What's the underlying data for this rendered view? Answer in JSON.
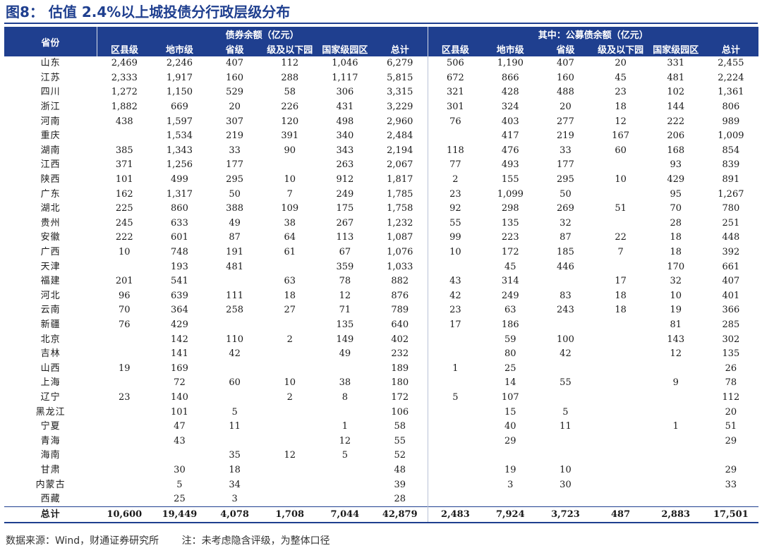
{
  "title": "图8：  估值 2.4%以上城投债分行政层级分布",
  "header": {
    "province": "省份",
    "group1": "债券余额（亿元）",
    "group2": "其中：公募债余额（亿元）",
    "sub": [
      "区县级",
      "地市级",
      "省级",
      "级及以下园",
      "国家级园区",
      "总计",
      "区县级",
      "地市级",
      "省级",
      "级及以下园",
      "国家级园区",
      "总计"
    ]
  },
  "rows": [
    {
      "province": "山东",
      "v": [
        "2,469",
        "2,246",
        "407",
        "112",
        "1,046",
        "6,279",
        "506",
        "1,190",
        "407",
        "20",
        "331",
        "2,455"
      ]
    },
    {
      "province": "江苏",
      "v": [
        "2,333",
        "1,917",
        "160",
        "288",
        "1,117",
        "5,815",
        "672",
        "866",
        "160",
        "45",
        "481",
        "2,224"
      ]
    },
    {
      "province": "四川",
      "v": [
        "1,272",
        "1,150",
        "529",
        "58",
        "306",
        "3,315",
        "321",
        "428",
        "488",
        "23",
        "102",
        "1,361"
      ]
    },
    {
      "province": "浙江",
      "v": [
        "1,882",
        "669",
        "20",
        "226",
        "431",
        "3,229",
        "301",
        "324",
        "20",
        "18",
        "144",
        "806"
      ]
    },
    {
      "province": "河南",
      "v": [
        "438",
        "1,597",
        "307",
        "120",
        "498",
        "2,960",
        "76",
        "403",
        "277",
        "12",
        "222",
        "989"
      ]
    },
    {
      "province": "重庆",
      "v": [
        "",
        "1,534",
        "219",
        "391",
        "340",
        "2,484",
        "",
        "417",
        "219",
        "167",
        "206",
        "1,009"
      ]
    },
    {
      "province": "湖南",
      "v": [
        "385",
        "1,343",
        "33",
        "90",
        "343",
        "2,194",
        "118",
        "476",
        "33",
        "60",
        "168",
        "854"
      ]
    },
    {
      "province": "江西",
      "v": [
        "371",
        "1,256",
        "177",
        "",
        "263",
        "2,067",
        "77",
        "493",
        "177",
        "",
        "93",
        "839"
      ]
    },
    {
      "province": "陕西",
      "v": [
        "101",
        "499",
        "295",
        "10",
        "912",
        "1,817",
        "2",
        "155",
        "295",
        "10",
        "429",
        "891"
      ]
    },
    {
      "province": "广东",
      "v": [
        "162",
        "1,317",
        "50",
        "7",
        "249",
        "1,785",
        "23",
        "1,099",
        "50",
        "",
        "95",
        "1,267"
      ]
    },
    {
      "province": "湖北",
      "v": [
        "225",
        "860",
        "388",
        "109",
        "175",
        "1,758",
        "92",
        "298",
        "269",
        "51",
        "70",
        "780"
      ]
    },
    {
      "province": "贵州",
      "v": [
        "245",
        "633",
        "49",
        "38",
        "267",
        "1,232",
        "55",
        "135",
        "32",
        "",
        "28",
        "251"
      ]
    },
    {
      "province": "安徽",
      "v": [
        "222",
        "601",
        "87",
        "64",
        "113",
        "1,087",
        "99",
        "223",
        "87",
        "22",
        "18",
        "448"
      ]
    },
    {
      "province": "广西",
      "v": [
        "10",
        "748",
        "191",
        "61",
        "67",
        "1,076",
        "10",
        "172",
        "185",
        "7",
        "18",
        "392"
      ]
    },
    {
      "province": "天津",
      "v": [
        "",
        "193",
        "481",
        "",
        "359",
        "1,033",
        "",
        "45",
        "446",
        "",
        "170",
        "661"
      ]
    },
    {
      "province": "福建",
      "v": [
        "201",
        "541",
        "",
        "63",
        "78",
        "882",
        "43",
        "314",
        "",
        "17",
        "32",
        "407"
      ]
    },
    {
      "province": "河北",
      "v": [
        "96",
        "639",
        "111",
        "18",
        "12",
        "876",
        "42",
        "249",
        "83",
        "18",
        "10",
        "401"
      ]
    },
    {
      "province": "云南",
      "v": [
        "70",
        "364",
        "258",
        "27",
        "71",
        "789",
        "23",
        "63",
        "243",
        "18",
        "19",
        "366"
      ]
    },
    {
      "province": "新疆",
      "v": [
        "76",
        "429",
        "",
        "",
        "135",
        "640",
        "17",
        "186",
        "",
        "",
        "81",
        "285"
      ]
    },
    {
      "province": "北京",
      "v": [
        "",
        "142",
        "110",
        "2",
        "149",
        "402",
        "",
        "59",
        "100",
        "",
        "143",
        "302"
      ]
    },
    {
      "province": "吉林",
      "v": [
        "",
        "141",
        "42",
        "",
        "49",
        "232",
        "",
        "80",
        "42",
        "",
        "12",
        "135"
      ]
    },
    {
      "province": "山西",
      "v": [
        "19",
        "169",
        "",
        "",
        "",
        "189",
        "1",
        "25",
        "",
        "",
        "",
        "26"
      ]
    },
    {
      "province": "上海",
      "v": [
        "",
        "72",
        "60",
        "10",
        "38",
        "180",
        "",
        "14",
        "55",
        "",
        "9",
        "78"
      ]
    },
    {
      "province": "辽宁",
      "v": [
        "23",
        "140",
        "",
        "2",
        "8",
        "172",
        "5",
        "107",
        "",
        "",
        "",
        "112"
      ]
    },
    {
      "province": "黑龙江",
      "v": [
        "",
        "101",
        "5",
        "",
        "",
        "106",
        "",
        "15",
        "5",
        "",
        "",
        "20"
      ]
    },
    {
      "province": "宁夏",
      "v": [
        "",
        "47",
        "11",
        "",
        "1",
        "58",
        "",
        "40",
        "11",
        "",
        "1",
        "51"
      ]
    },
    {
      "province": "青海",
      "v": [
        "",
        "43",
        "",
        "",
        "12",
        "55",
        "",
        "29",
        "",
        "",
        "",
        "29"
      ]
    },
    {
      "province": "海南",
      "v": [
        "",
        "",
        "35",
        "12",
        "5",
        "52",
        "",
        "",
        "",
        "",
        "",
        ""
      ]
    },
    {
      "province": "甘肃",
      "v": [
        "",
        "30",
        "18",
        "",
        "",
        "48",
        "",
        "19",
        "10",
        "",
        "",
        "29"
      ]
    },
    {
      "province": "内蒙古",
      "v": [
        "",
        "5",
        "34",
        "",
        "",
        "39",
        "",
        "3",
        "30",
        "",
        "",
        "33"
      ]
    },
    {
      "province": "西藏",
      "v": [
        "",
        "25",
        "3",
        "",
        "",
        "28",
        "",
        "",
        "",
        "",
        "",
        ""
      ]
    }
  ],
  "total": {
    "province": "总计",
    "v": [
      "10,600",
      "19,449",
      "4,078",
      "1,708",
      "7,044",
      "42,879",
      "2,483",
      "7,924",
      "3,723",
      "487",
      "2,883",
      "17,501"
    ]
  },
  "footer": {
    "source": "数据来源：Wind，财通证券研究所",
    "note": "注：未考虑隐含评级，为整体口径"
  },
  "colors": {
    "header_bg": "#1f3f8f",
    "title": "#1f3f8f"
  }
}
